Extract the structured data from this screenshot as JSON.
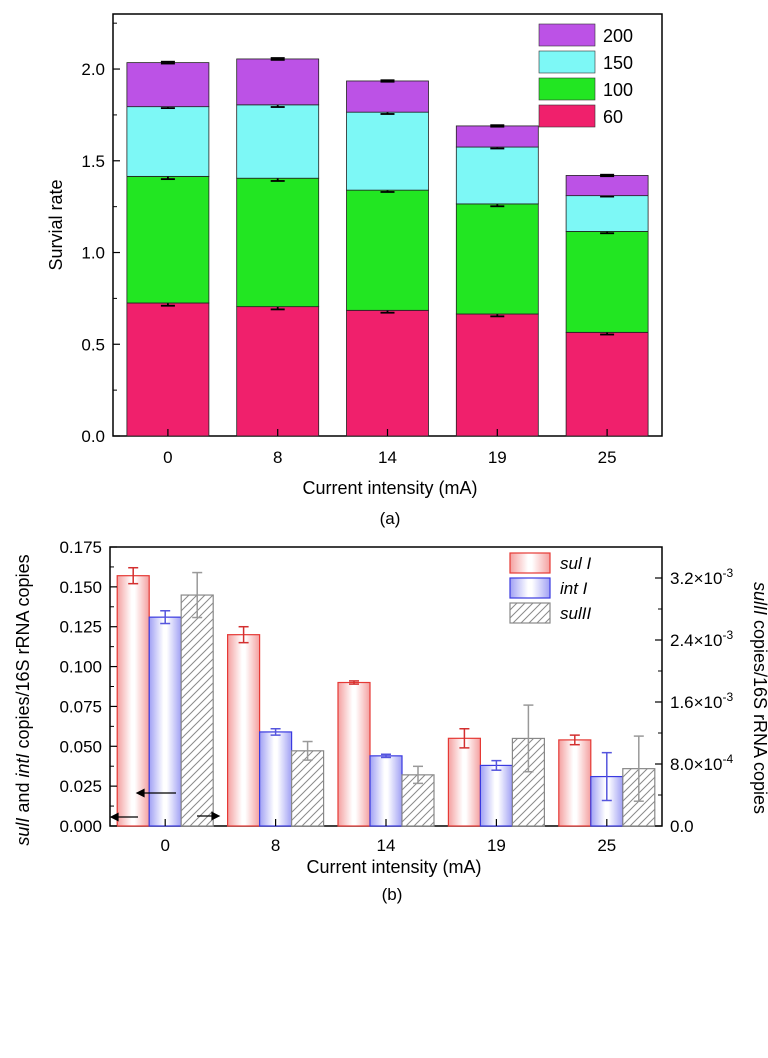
{
  "colors": {
    "s60": "#f0206c",
    "s100": "#22e622",
    "s150": "#7df8f6",
    "s200": "#bc52e6",
    "sulI": "#e53935",
    "intI": "#3a3ae0",
    "sulII": "#999999"
  },
  "chart_data": [
    {
      "type": "bar",
      "stacked": true,
      "panel_label": "(a)",
      "xlabel": "Current intensity (mA)",
      "ylabel": "Survial rate",
      "categories": [
        "0",
        "8",
        "14",
        "19",
        "25"
      ],
      "ylim": [
        0,
        2.3
      ],
      "yticks": [
        "0.0",
        "0.5",
        "1.0",
        "1.5",
        "2.0"
      ],
      "legend_position": "top-right",
      "grid": false,
      "series": [
        {
          "name": "60",
          "color_key": "s60",
          "values": [
            0.725,
            0.705,
            0.685,
            0.665,
            0.565
          ],
          "errors": [
            0.015,
            0.015,
            0.013,
            0.013,
            0.012
          ]
        },
        {
          "name": "100",
          "color_key": "s100",
          "values": [
            0.69,
            0.7,
            0.655,
            0.6,
            0.55
          ],
          "errors": [
            0.015,
            0.015,
            0.01,
            0.013,
            0.01
          ]
        },
        {
          "name": "150",
          "color_key": "s150",
          "values": [
            0.38,
            0.4,
            0.425,
            0.31,
            0.195
          ],
          "errors": [
            0.008,
            0.012,
            0.01,
            0.008,
            0.005
          ]
        },
        {
          "name": "200",
          "color_key": "s200",
          "values": [
            0.24,
            0.25,
            0.17,
            0.115,
            0.11
          ],
          "errors": [
            0.005,
            0.005,
            0.004,
            0.004,
            0.004
          ]
        }
      ],
      "legend_order": [
        "200",
        "150",
        "100",
        "60"
      ]
    },
    {
      "type": "bar",
      "panel_label": "(b)",
      "xlabel": "Current intensity (mA)",
      "ylabel_left": "sulI and intI copies/16S rRNA copies",
      "ylabel_left_parts": [
        "sulI",
        " and ",
        "intI",
        " copies/16S rRNA copies"
      ],
      "ylabel_right": "sulII copies/16S rRNA copies",
      "ylabel_right_parts": [
        "sulII",
        " copies/16S rRNA copies"
      ],
      "categories": [
        "0",
        "8",
        "14",
        "19",
        "25"
      ],
      "ylim_left": [
        0,
        0.175
      ],
      "yticks_left": [
        "0.000",
        "0.025",
        "0.050",
        "0.075",
        "0.100",
        "0.125",
        "0.150",
        "0.175"
      ],
      "ylim_right": [
        0,
        0.0036
      ],
      "yticks_right": [
        {
          "mant": "0.0",
          "exp": ""
        },
        {
          "mant": "8.0×10",
          "exp": "-4"
        },
        {
          "mant": "1.6×10",
          "exp": "-3"
        },
        {
          "mant": "2.4×10",
          "exp": "-3"
        },
        {
          "mant": "3.2×10",
          "exp": "-3"
        }
      ],
      "legend_position": "top-right",
      "grid": false,
      "series": [
        {
          "name": "sul I",
          "axis": "left",
          "color_key": "sulI",
          "values": [
            0.157,
            0.12,
            0.09,
            0.055,
            0.054
          ],
          "errors": [
            0.005,
            0.005,
            0.001,
            0.006,
            0.003
          ]
        },
        {
          "name": "int I",
          "axis": "left",
          "color_key": "intI",
          "values": [
            0.131,
            0.059,
            0.044,
            0.038,
            0.031
          ],
          "errors": [
            0.004,
            0.002,
            0.001,
            0.003,
            0.015
          ]
        },
        {
          "name": "sulII",
          "axis": "right",
          "color_key": "sulII",
          "values": [
            0.00298,
            0.00097,
            0.00066,
            0.00113,
            0.00074
          ],
          "errors": [
            0.00029,
            0.00012,
            0.00011,
            0.00043,
            0.00042
          ]
        }
      ]
    }
  ]
}
